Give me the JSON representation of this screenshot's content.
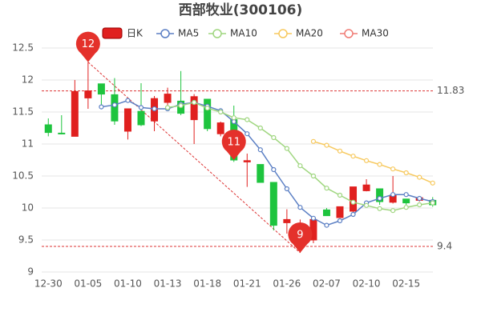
{
  "chart_data": {
    "type": "candlestick",
    "title": "西部牧业(300106)",
    "categories": [
      "12-30",
      null,
      null,
      "01-05",
      null,
      null,
      "01-10",
      null,
      null,
      "01-13",
      null,
      null,
      "01-18",
      null,
      null,
      "01-21",
      null,
      null,
      "01-26",
      null,
      null,
      "02-07",
      null,
      null,
      "02-10",
      null,
      null,
      "02-15",
      null,
      null
    ],
    "candle": {
      "name": "日K",
      "up_color": "#e0201f",
      "down_color": "#1ec43e",
      "open": [
        11.3,
        11.17,
        11.12,
        11.72,
        11.94,
        11.77,
        11.2,
        11.51,
        11.36,
        11.65,
        11.67,
        11.38,
        11.7,
        11.16,
        11.38,
        10.72,
        10.68,
        10.4,
        9.77,
        9.5,
        9.5,
        9.97,
        9.85,
        9.95,
        10.27,
        10.3,
        10.09,
        10.14,
        10.12,
        10.12
      ],
      "close": [
        11.18,
        11.16,
        11.82,
        11.83,
        11.78,
        11.36,
        11.55,
        11.3,
        11.71,
        11.78,
        11.48,
        11.74,
        11.24,
        11.33,
        10.75,
        10.74,
        10.4,
        9.73,
        9.82,
        9.75,
        9.82,
        9.88,
        10.02,
        10.33,
        10.36,
        10.1,
        10.2,
        10.08,
        10.16,
        10.05
      ],
      "high": [
        11.4,
        11.45,
        12.0,
        12.28,
        11.94,
        12.03,
        11.55,
        11.95,
        11.75,
        11.88,
        12.14,
        11.78,
        11.7,
        11.35,
        11.6,
        10.85,
        10.68,
        10.4,
        9.98,
        9.82,
        9.86,
        10.0,
        10.02,
        10.33,
        10.45,
        10.3,
        10.5,
        10.14,
        10.18,
        10.17
      ],
      "low": [
        11.12,
        11.15,
        11.12,
        11.55,
        11.55,
        11.3,
        11.07,
        11.28,
        11.2,
        11.6,
        11.45,
        11.0,
        11.2,
        11.12,
        10.72,
        10.33,
        10.4,
        9.65,
        9.6,
        9.3,
        9.45,
        9.88,
        9.85,
        9.92,
        10.26,
        10.05,
        10.07,
        10.05,
        10.1,
        10.02
      ]
    },
    "series": [
      {
        "name": "MA5",
        "color": "#5b7fc4",
        "values": [
          null,
          null,
          null,
          null,
          11.58,
          11.61,
          11.68,
          11.57,
          11.55,
          11.55,
          11.62,
          11.65,
          11.59,
          11.52,
          11.35,
          11.16,
          10.91,
          10.6,
          10.3,
          10.01,
          9.84,
          9.73,
          9.8,
          9.9,
          10.08,
          10.15,
          10.21,
          10.21,
          10.15,
          10.1
        ]
      },
      {
        "name": "MA10",
        "color": "#9fd67f",
        "values": [
          null,
          null,
          null,
          null,
          null,
          null,
          null,
          null,
          null,
          11.57,
          11.6,
          11.65,
          11.56,
          11.5,
          11.41,
          11.38,
          11.25,
          11.1,
          10.93,
          10.66,
          10.5,
          10.31,
          10.2,
          10.09,
          10.04,
          9.99,
          9.96,
          10.01,
          10.05,
          10.08
        ]
      },
      {
        "name": "MA20",
        "color": "#f7c95e",
        "values": [
          null,
          null,
          null,
          null,
          null,
          null,
          null,
          null,
          null,
          null,
          null,
          null,
          null,
          null,
          null,
          null,
          null,
          null,
          null,
          null,
          11.04,
          10.98,
          10.89,
          10.81,
          10.74,
          10.68,
          10.61,
          10.55,
          10.48,
          10.39
        ]
      },
      {
        "name": "MA30",
        "color": "#f07c75",
        "values": [
          null,
          null,
          null,
          null,
          null,
          null,
          null,
          null,
          null,
          null,
          null,
          null,
          null,
          null,
          null,
          null,
          null,
          null,
          null,
          null,
          null,
          null,
          null,
          null,
          null,
          null,
          null,
          null,
          null,
          null
        ]
      }
    ],
    "ylim": [
      9,
      12.5
    ],
    "yticks": [
      9,
      9.5,
      10,
      10.5,
      11,
      11.5,
      12,
      12.5
    ],
    "grid": true,
    "ref_lines": [
      11.83,
      9.4
    ],
    "pins": [
      {
        "index": 3,
        "value": 12.28,
        "label": "12"
      },
      {
        "index": 14,
        "value": 10.75,
        "label": "11"
      },
      {
        "index": 19,
        "value": 9.3,
        "label": "9"
      }
    ]
  }
}
